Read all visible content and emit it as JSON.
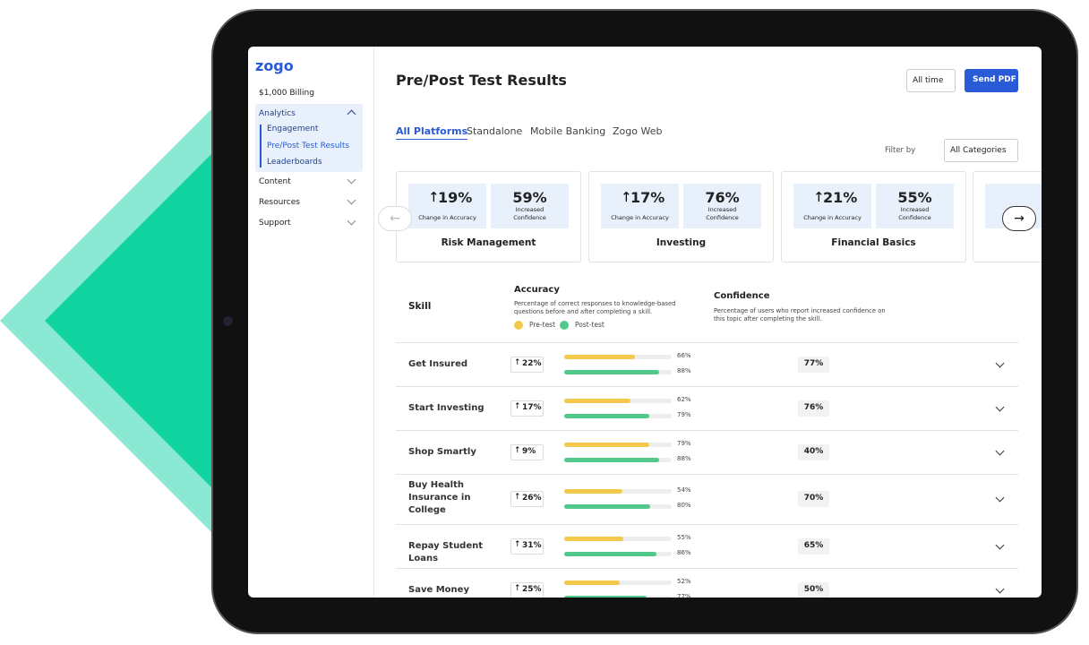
{
  "sidebar": {
    "logo": "zogo",
    "billing": "$1,000 Billing",
    "nav": [
      {
        "label": "Analytics",
        "children": [
          "Engagement",
          "Pre/Post Test Results",
          "Leaderboards"
        ]
      },
      {
        "label": "Content"
      },
      {
        "label": "Resources"
      },
      {
        "label": "Support"
      }
    ]
  },
  "header": {
    "title": "Pre/Post Test Results",
    "range": "All time",
    "button": "Send PDF"
  },
  "tabs": [
    "All Platforms",
    "Standalone",
    "Mobile Banking",
    "Zogo Web"
  ],
  "filter": {
    "label": "Filter by",
    "value": "All Categories"
  },
  "cards": [
    {
      "name": "Risk Management",
      "accuracy_change": "19%",
      "accuracy_label": "Change in Accuracy",
      "confidence": "59%",
      "confidence_label": "Increased Confidence"
    },
    {
      "name": "Investing",
      "accuracy_change": "17%",
      "accuracy_label": "Change in Accuracy",
      "confidence": "76%",
      "confidence_label": "Increased Confidence"
    },
    {
      "name": "Financial Basics",
      "accuracy_change": "21%",
      "accuracy_label": "Change in Accuracy",
      "confidence": "55%",
      "confidence_label": "Increased Confidence"
    }
  ],
  "table": {
    "headers": {
      "skill": "Skill",
      "accuracy": "Accuracy",
      "accuracy_desc": "Percentage of correct responses to knowledge-based questions before and after completing a skill.",
      "confidence": "Confidence",
      "confidence_desc": "Percentage of users who report increased confidence on this topic after completing the skill.",
      "legend": [
        "Pre-test",
        "Post-test"
      ]
    },
    "rows": [
      {
        "skill": "Get Insured",
        "change": "22%",
        "pre": {
          "value": 66,
          "label": "66%"
        },
        "post": {
          "value": 88,
          "label": "88%"
        },
        "confidence": "77%"
      },
      {
        "skill": "Start Investing",
        "change": "17%",
        "pre": {
          "value": 62,
          "label": "62%"
        },
        "post": {
          "value": 79,
          "label": "79%"
        },
        "confidence": "76%"
      },
      {
        "skill": "Shop Smartly",
        "change": "9%",
        "pre": {
          "value": 79,
          "label": "79%"
        },
        "post": {
          "value": 88,
          "label": "88%"
        },
        "confidence": "40%"
      },
      {
        "skill": "Buy Health Insurance in College",
        "change": "26%",
        "pre": {
          "value": 54,
          "label": "54%"
        },
        "post": {
          "value": 80,
          "label": "80%"
        },
        "confidence": "70%"
      },
      {
        "skill": "Repay Student Loans",
        "change": "31%",
        "pre": {
          "value": 55,
          "label": "55%"
        },
        "post": {
          "value": 86,
          "label": "86%"
        },
        "confidence": "65%"
      },
      {
        "skill": "Save Money",
        "change": "25%",
        "pre": {
          "value": 52,
          "label": "52%"
        },
        "post": {
          "value": 77,
          "label": "77%"
        },
        "confidence": "50%"
      }
    ]
  }
}
